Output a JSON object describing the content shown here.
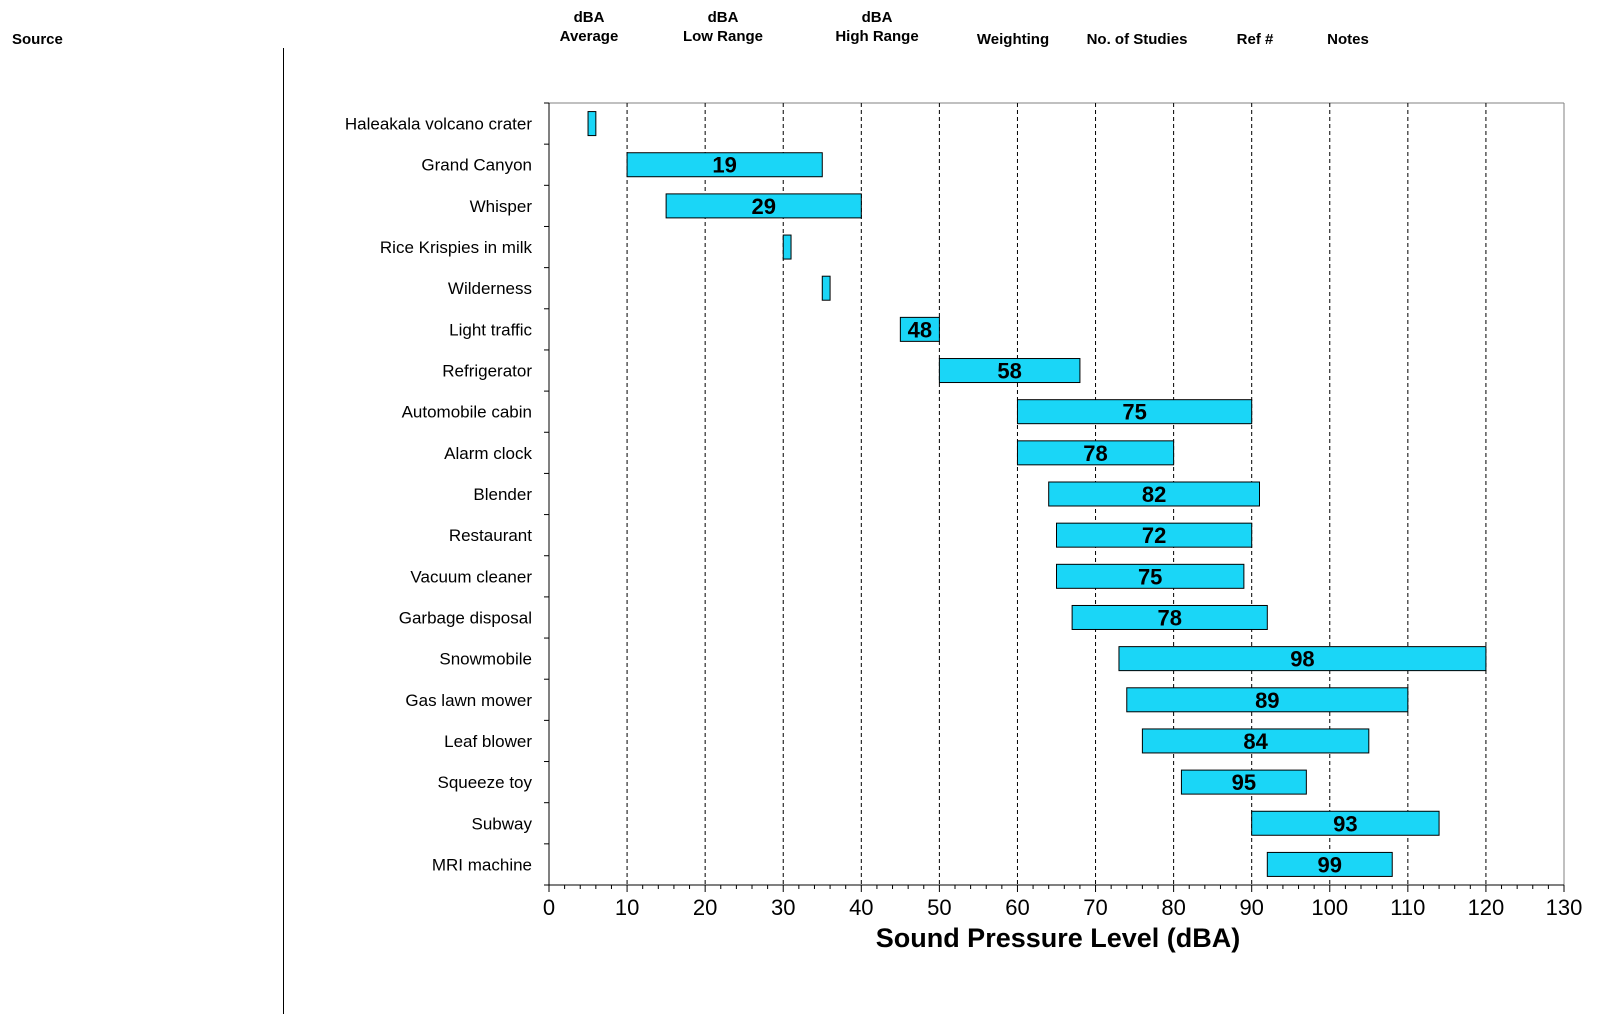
{
  "header": {
    "source": "Source",
    "avg": [
      "dBA",
      "Average"
    ],
    "low": [
      "dBA",
      "Low Range"
    ],
    "high": [
      "dBA",
      "High Range"
    ],
    "weighting": "Weighting",
    "studies": "No. of Studies",
    "ref": "Ref #",
    "notes": "Notes"
  },
  "chart_data": {
    "type": "bar",
    "orientation": "horizontal-range",
    "xlabel": "Sound Pressure Level (dBA)",
    "xlim": [
      0,
      130
    ],
    "xticks": [
      "0",
      "10",
      "20",
      "30",
      "40",
      "50",
      "60",
      "70",
      "80",
      "90",
      "100",
      "110",
      "120",
      "130"
    ],
    "grid": "vertical dashed",
    "bar_color": "#1ad6f7",
    "categories": [
      "Haleakala volcano crater",
      "Grand Canyon",
      "Whisper",
      "Rice Krispies in milk",
      "Wilderness",
      "Light traffic",
      "Refrigerator",
      "Automobile cabin",
      "Alarm clock",
      "Blender",
      "Restaurant",
      "Vacuum cleaner",
      "Garbage disposal",
      "Snowmobile",
      "Gas lawn mower",
      "Leaf blower",
      "Squeeze toy",
      "Subway",
      "MRI machine"
    ],
    "low": [
      5,
      10,
      15,
      30,
      35,
      45,
      50,
      60,
      60,
      64,
      65,
      65,
      67,
      73,
      74,
      76,
      81,
      90,
      92
    ],
    "high": [
      6,
      35,
      40,
      31,
      36,
      50,
      68,
      90,
      80,
      91,
      90,
      89,
      92,
      120,
      110,
      105,
      97,
      114,
      108
    ],
    "average": [
      null,
      19,
      29,
      null,
      null,
      48,
      58,
      75,
      78,
      82,
      72,
      75,
      78,
      98,
      89,
      84,
      95,
      93,
      99
    ]
  }
}
